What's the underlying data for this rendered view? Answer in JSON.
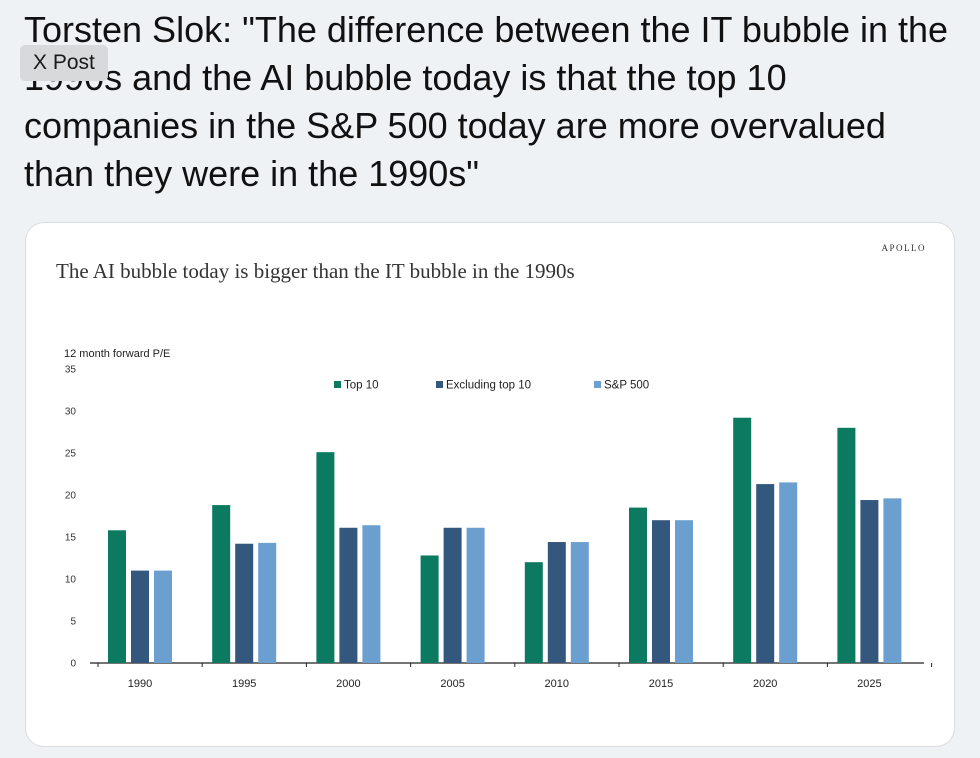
{
  "post": {
    "badge": "X Post",
    "text": "Torsten Slok: \"The difference between the IT bubble in the 1990s and the AI bubble today is that the top 10 companies in the S&P 500 today are more overvalued than they were in the 1990s\""
  },
  "card": {
    "brand": "APOLLO"
  },
  "chart_data": {
    "type": "bar",
    "title": "The AI bubble today is bigger than the IT bubble in the 1990s",
    "xlabel": "",
    "ylabel": "12 month forward P/E",
    "ylim": [
      0,
      35
    ],
    "yticks": [
      0,
      5,
      10,
      15,
      20,
      25,
      30,
      35
    ],
    "categories": [
      "1990",
      "1995",
      "2000",
      "2005",
      "2010",
      "2015",
      "2020",
      "2025"
    ],
    "legend_position": "top-center",
    "grid": false,
    "series": [
      {
        "name": "Top 10",
        "color": "#0b7a61",
        "values": [
          15.8,
          18.8,
          25.1,
          12.8,
          12.0,
          18.5,
          29.2,
          28.0
        ]
      },
      {
        "name": "Excluding top 10",
        "color": "#34577e",
        "values": [
          11.0,
          14.2,
          16.1,
          16.1,
          14.4,
          17.0,
          21.3,
          19.4
        ]
      },
      {
        "name": "S&P 500",
        "color": "#6a9fd0",
        "values": [
          11.0,
          14.3,
          16.4,
          16.1,
          14.4,
          17.0,
          21.5,
          19.6
        ]
      }
    ]
  }
}
